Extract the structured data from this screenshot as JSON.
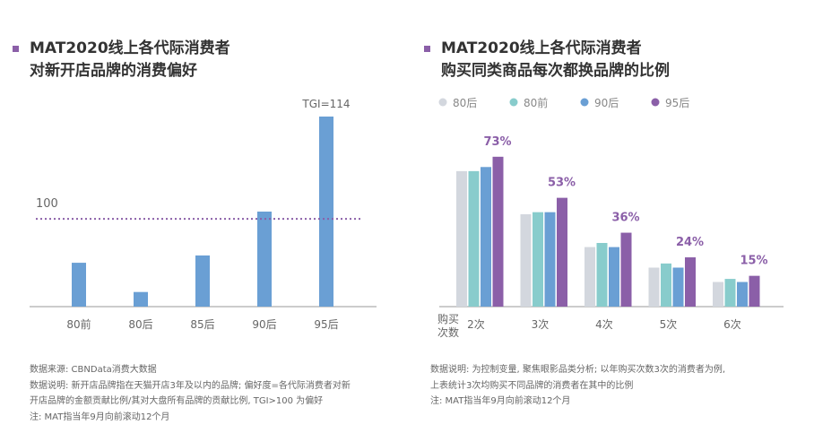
{
  "left": {
    "title_line1": "MAT2020线上各代际消费者",
    "title_line2": "对新开店品牌的消费偏好",
    "notes": [
      "数据来源: CBNData消费大数据",
      "数据说明: 新开店品牌指在天猫开店3年及以内的品牌; 偏好度=各代际消费者对新",
      "开店品牌的金额贡献比例/其对大盘所有品牌的贡献比例, TGI>100 为偏好",
      "注: MAT指当年9月向前滚动12个月"
    ]
  },
  "right": {
    "title_line1": "MAT2020线上各代际消费者",
    "title_line2": "购买同类商品每次都换品牌的比例",
    "notes": [
      "数据说明: 为控制变量, 聚焦眼影品类分析; 以年购买次数3次的消费者为例,",
      "上表统计3次均购买不同品牌的消费者在其中的比例",
      "注: MAT指当年9月向前滚动12个月"
    ]
  },
  "chart_data": [
    {
      "type": "bar",
      "categories": [
        "80前",
        "80后",
        "85后",
        "90后",
        "95后"
      ],
      "values": [
        94,
        90,
        95,
        101,
        114
      ],
      "reference_line": {
        "value": 100,
        "label": "100",
        "color": "#8b5fa8",
        "style": "dotted"
      },
      "annotation": "TGI=114",
      "ylim": [
        88,
        114
      ],
      "grid": false,
      "color": "#6a9fd4"
    },
    {
      "type": "bar",
      "categories": [
        "2次",
        "3次",
        "4次",
        "5次",
        "6次"
      ],
      "xlabel": "购买次数",
      "xlabel_lines": [
        "购买",
        "次数"
      ],
      "legend_position": "top-left",
      "series": [
        {
          "name": "80后",
          "color": "#d3d7de",
          "values": [
            66,
            45,
            29,
            19,
            12
          ]
        },
        {
          "name": "80前",
          "color": "#88cccc",
          "values": [
            66,
            46,
            31,
            21,
            13.5
          ]
        },
        {
          "name": "90后",
          "color": "#6a9fd4",
          "values": [
            68,
            46,
            29,
            19,
            12
          ]
        },
        {
          "name": "95后",
          "color": "#8b5fa8",
          "values": [
            73,
            53,
            36,
            24,
            15
          ]
        }
      ],
      "data_labels": [
        "73%",
        "53%",
        "36%",
        "24%",
        "15%"
      ],
      "ylim": [
        0,
        80
      ],
      "grid": false
    }
  ]
}
